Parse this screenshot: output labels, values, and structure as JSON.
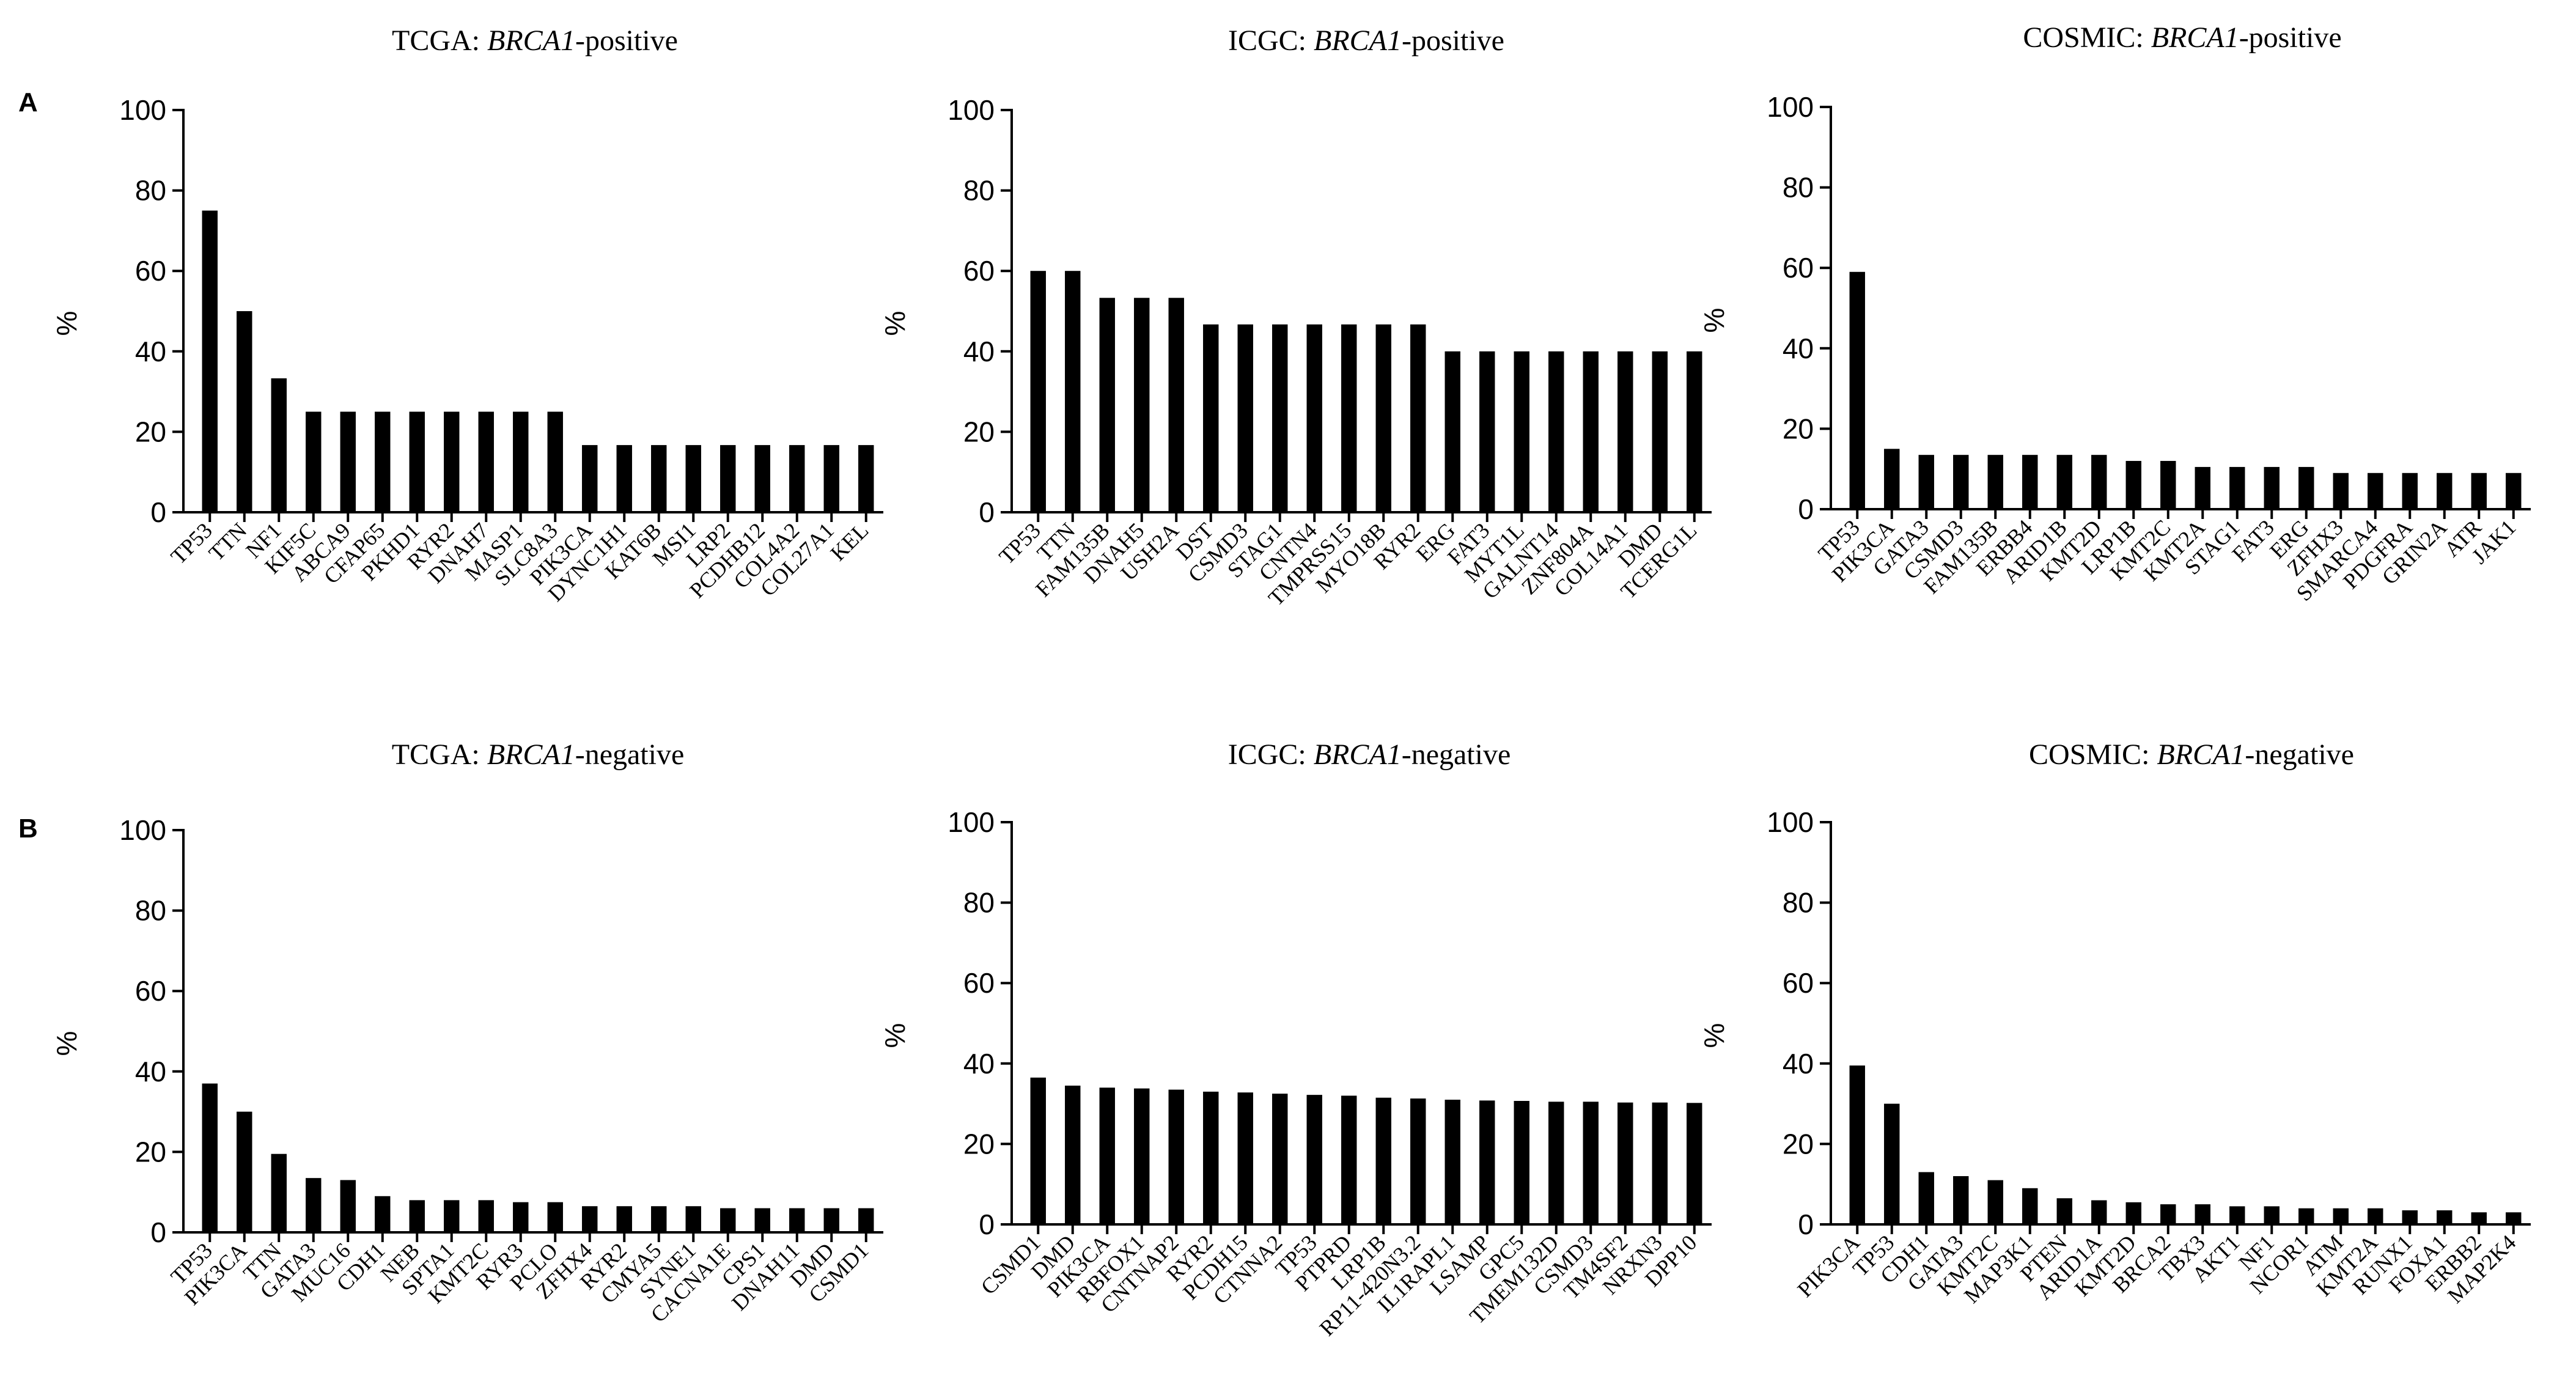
{
  "panel_labels": [
    "A",
    "B"
  ],
  "chart_data": [
    {
      "type": "bar",
      "title_prefix": "TCGA: ",
      "title_gene": "BRCA1",
      "title_suffix": "-positive",
      "ylabel": "%",
      "ylim": [
        0,
        100
      ],
      "yticks": [
        0,
        20,
        40,
        60,
        80,
        100
      ],
      "categories": [
        "TP53",
        "TTN",
        "NF1",
        "KIF5C",
        "ABCA9",
        "CFAP65",
        "PKHD1",
        "RYR2",
        "DNAH7",
        "MASP1",
        "SLC8A3",
        "PIK3CA",
        "DYNC1H1",
        "KAT6B",
        "MSI1",
        "LRP2",
        "PCDHB12",
        "COL4A2",
        "COL27A1",
        "KEL"
      ],
      "values": [
        75,
        50,
        33.3,
        25,
        25,
        25,
        25,
        25,
        25,
        25,
        25,
        16.7,
        16.7,
        16.7,
        16.7,
        16.7,
        16.7,
        16.7,
        16.7,
        16.7
      ]
    },
    {
      "type": "bar",
      "title_prefix": "ICGC: ",
      "title_gene": "BRCA1",
      "title_suffix": "-positive",
      "ylabel": "%",
      "ylim": [
        0,
        100
      ],
      "yticks": [
        0,
        20,
        40,
        60,
        80,
        100
      ],
      "categories": [
        "TP53",
        "TTN",
        "FAM135B",
        "DNAH5",
        "USH2A",
        "DST",
        "CSMD3",
        "STAG1",
        "CNTN4",
        "TMPRSS15",
        "MYO18B",
        "RYR2",
        "ERG",
        "FAT3",
        "MYT1L",
        "GALNT14",
        "ZNF804A",
        "COL14A1",
        "DMD",
        "TCERG1L"
      ],
      "values": [
        60,
        60,
        53.3,
        53.3,
        53.3,
        46.7,
        46.7,
        46.7,
        46.7,
        46.7,
        46.7,
        46.7,
        40,
        40,
        40,
        40,
        40,
        40,
        40,
        40
      ]
    },
    {
      "type": "bar",
      "title_prefix": "COSMIC: ",
      "title_gene": "BRCA1",
      "title_suffix": "-positive",
      "ylabel": "%",
      "ylim": [
        0,
        100
      ],
      "yticks": [
        0,
        20,
        40,
        60,
        80,
        100
      ],
      "categories": [
        "TP53",
        "PIK3CA",
        "GATA3",
        "CSMD3",
        "FAM135B",
        "ERBB4",
        "ARID1B",
        "KMT2D",
        "LRP1B",
        "KMT2C",
        "KMT2A",
        "STAG1",
        "FAT3",
        "ERG",
        "ZFHX3",
        "SMARCA4",
        "PDGFRA",
        "GRIN2A",
        "ATR",
        "JAK1"
      ],
      "values": [
        59,
        15,
        13.5,
        13.5,
        13.5,
        13.5,
        13.5,
        13.5,
        12,
        12,
        10.5,
        10.5,
        10.5,
        10.5,
        9,
        9,
        9,
        9,
        9,
        9
      ]
    },
    {
      "type": "bar",
      "title_prefix": "TCGA: ",
      "title_gene": "BRCA1",
      "title_suffix": "-negative",
      "ylabel": "%",
      "ylim": [
        0,
        100
      ],
      "yticks": [
        0,
        20,
        40,
        60,
        80,
        100
      ],
      "categories": [
        "TP53",
        "PIK3CA",
        "TTN",
        "GATA3",
        "MUC16",
        "CDH1",
        "NEB",
        "SPTA1",
        "KMT2C",
        "RYR3",
        "PCLO",
        "ZFHX4",
        "RYR2",
        "CMYA5",
        "SYNE1",
        "CACNA1E",
        "CPS1",
        "DNAH11",
        "DMD",
        "CSMD1"
      ],
      "values": [
        37,
        30,
        19.5,
        13.5,
        13,
        9,
        8,
        8,
        8,
        7.5,
        7.5,
        6.5,
        6.5,
        6.5,
        6.5,
        6,
        6,
        6,
        6,
        6
      ]
    },
    {
      "type": "bar",
      "title_prefix": "ICGC: ",
      "title_gene": "BRCA1",
      "title_suffix": "-negative",
      "ylabel": "%",
      "ylim": [
        0,
        100
      ],
      "yticks": [
        0,
        20,
        40,
        60,
        80,
        100
      ],
      "categories": [
        "CSMD1",
        "DMD",
        "PIK3CA",
        "RBFOX1",
        "CNTNAP2",
        "RYR2",
        "PCDH15",
        "CTNNA2",
        "TP53",
        "PTPRD",
        "LRP1B",
        "RP11-420N3.2",
        "IL1RAPL1",
        "LSAMP",
        "GPC5",
        "TMEM132D",
        "CSMD3",
        "TM4SF2",
        "NRXN3",
        "DPP10"
      ],
      "values": [
        36.5,
        34.5,
        34,
        33.8,
        33.5,
        33,
        32.8,
        32.5,
        32.2,
        32,
        31.5,
        31.3,
        31,
        30.8,
        30.7,
        30.5,
        30.5,
        30.3,
        30.3,
        30.2
      ]
    },
    {
      "type": "bar",
      "title_prefix": "COSMIC: ",
      "title_gene": "BRCA1",
      "title_suffix": "-negative",
      "ylabel": "%",
      "ylim": [
        0,
        100
      ],
      "yticks": [
        0,
        20,
        40,
        60,
        80,
        100
      ],
      "categories": [
        "PIK3CA",
        "TP53",
        "CDH1",
        "GATA3",
        "KMT2C",
        "MAP3K1",
        "PTEN",
        "ARID1A",
        "KMT2D",
        "BRCA2",
        "TBX3",
        "AKT1",
        "NF1",
        "NCOR1",
        "ATM",
        "KMT2A",
        "RUNX1",
        "FOXA1",
        "ERBB2",
        "MAP2K4"
      ],
      "values": [
        39.5,
        30,
        13,
        12,
        11,
        9,
        6.5,
        6,
        5.5,
        5,
        5,
        4.5,
        4.5,
        4,
        4,
        4,
        3.5,
        3.5,
        3,
        3
      ]
    }
  ]
}
